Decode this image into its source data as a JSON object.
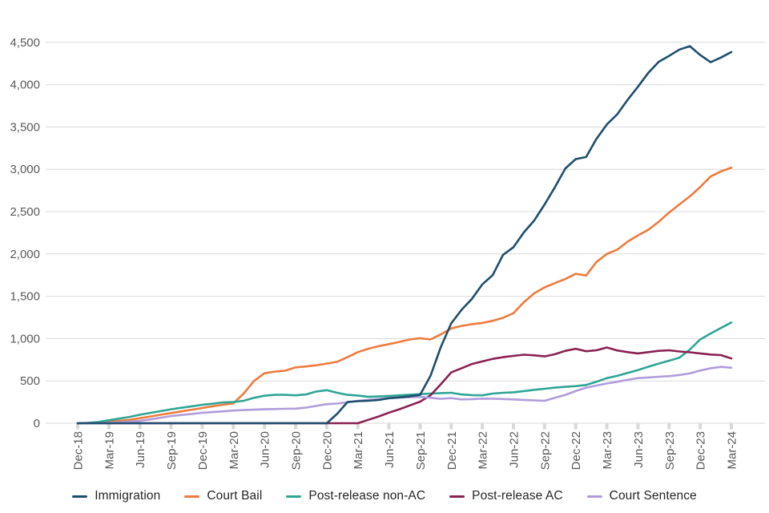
{
  "chart_data": {
    "type": "line",
    "title": "",
    "xlabel": "",
    "ylabel": "",
    "x_unit": "month",
    "x_range": [
      "Dec-18",
      "Mar-24"
    ],
    "ylim": [
      0,
      4500
    ],
    "grid": "horizontal",
    "legend_position": "bottom",
    "grid_color": "#d9d9d9",
    "axis_label_color": "#595959",
    "x_tick_labels": [
      "Dec-18",
      "Mar-19",
      "Jun-19",
      "Sep-19",
      "Dec-19",
      "Mar-20",
      "Jun-20",
      "Sep-20",
      "Dec-20",
      "Mar-21",
      "Jun-21",
      "Sep-21",
      "Dec-21",
      "Mar-22",
      "Jun-22",
      "Sep-22",
      "Dec-22",
      "Mar-23",
      "Jun-23",
      "Sep-23",
      "Dec-23",
      "Mar-24"
    ],
    "y_ticks": [
      {
        "value": 0,
        "label": "0"
      },
      {
        "value": 500,
        "label": "500"
      },
      {
        "value": 1000,
        "label": "1,000"
      },
      {
        "value": 1500,
        "label": "1,500"
      },
      {
        "value": 2000,
        "label": "2,000"
      },
      {
        "value": 2500,
        "label": "2,500"
      },
      {
        "value": 3000,
        "label": "3,000"
      },
      {
        "value": 3500,
        "label": "3,500"
      },
      {
        "value": 4000,
        "label": "4,000"
      },
      {
        "value": 4500,
        "label": "4,500"
      }
    ],
    "series": [
      {
        "name": "Immigration",
        "color": "#1d4e6d",
        "values": [
          0,
          0,
          0,
          0,
          0,
          0,
          0,
          0,
          0,
          0,
          0,
          0,
          0,
          0,
          0,
          0,
          0,
          0,
          0,
          0,
          0,
          0,
          0,
          0,
          0,
          110,
          250,
          260,
          265,
          275,
          295,
          305,
          318,
          335,
          560,
          900,
          1180,
          1340,
          1470,
          1640,
          1750,
          1990,
          2080,
          2255,
          2395,
          2585,
          2790,
          3010,
          3120,
          3145,
          3360,
          3530,
          3650,
          3820,
          3975,
          4140,
          4270,
          4340,
          4415,
          4455,
          4350,
          4265,
          4320,
          4385
        ]
      },
      {
        "name": "Court Bail",
        "color": "#ef7b3c",
        "values": [
          0,
          3,
          8,
          18,
          28,
          40,
          60,
          80,
          100,
          120,
          140,
          160,
          180,
          200,
          218,
          235,
          350,
          500,
          590,
          610,
          620,
          660,
          670,
          685,
          705,
          725,
          780,
          840,
          880,
          910,
          935,
          960,
          990,
          1005,
          990,
          1050,
          1120,
          1150,
          1170,
          1185,
          1210,
          1245,
          1300,
          1430,
          1535,
          1605,
          1655,
          1705,
          1765,
          1745,
          1905,
          2000,
          2050,
          2145,
          2220,
          2285,
          2380,
          2490,
          2585,
          2680,
          2790,
          2915,
          2975,
          3020
        ]
      },
      {
        "name": "Post-release non-AC",
        "color": "#2ea595",
        "values": [
          0,
          5,
          15,
          35,
          55,
          75,
          100,
          122,
          143,
          165,
          183,
          200,
          218,
          230,
          245,
          250,
          265,
          300,
          325,
          335,
          335,
          330,
          340,
          375,
          390,
          360,
          335,
          328,
          312,
          316,
          322,
          330,
          337,
          344,
          350,
          356,
          360,
          340,
          332,
          330,
          350,
          360,
          366,
          380,
          395,
          407,
          420,
          430,
          438,
          452,
          490,
          533,
          560,
          595,
          628,
          668,
          705,
          739,
          775,
          870,
          990,
          1060,
          1125,
          1190
        ]
      },
      {
        "name": "Post-release AC",
        "color": "#8a2152",
        "values": [
          0,
          0,
          0,
          0,
          0,
          0,
          0,
          0,
          0,
          0,
          0,
          0,
          0,
          0,
          0,
          0,
          0,
          0,
          0,
          0,
          0,
          0,
          0,
          0,
          0,
          0,
          0,
          0,
          40,
          80,
          125,
          165,
          210,
          255,
          330,
          460,
          600,
          650,
          700,
          730,
          760,
          780,
          795,
          810,
          802,
          790,
          815,
          855,
          880,
          850,
          862,
          895,
          860,
          840,
          825,
          840,
          855,
          862,
          848,
          838,
          825,
          812,
          805,
          765
        ]
      },
      {
        "name": "Court Sentence",
        "color": "#b09cdb",
        "values": [
          0,
          0,
          0,
          5,
          10,
          18,
          28,
          45,
          65,
          85,
          98,
          110,
          123,
          132,
          140,
          150,
          155,
          160,
          165,
          168,
          170,
          172,
          185,
          205,
          225,
          232,
          248,
          265,
          276,
          286,
          296,
          302,
          307,
          312,
          300,
          288,
          296,
          281,
          285,
          291,
          290,
          286,
          281,
          276,
          270,
          265,
          300,
          335,
          380,
          420,
          445,
          470,
          490,
          512,
          533,
          541,
          549,
          556,
          570,
          588,
          622,
          650,
          666,
          655
        ]
      }
    ]
  }
}
